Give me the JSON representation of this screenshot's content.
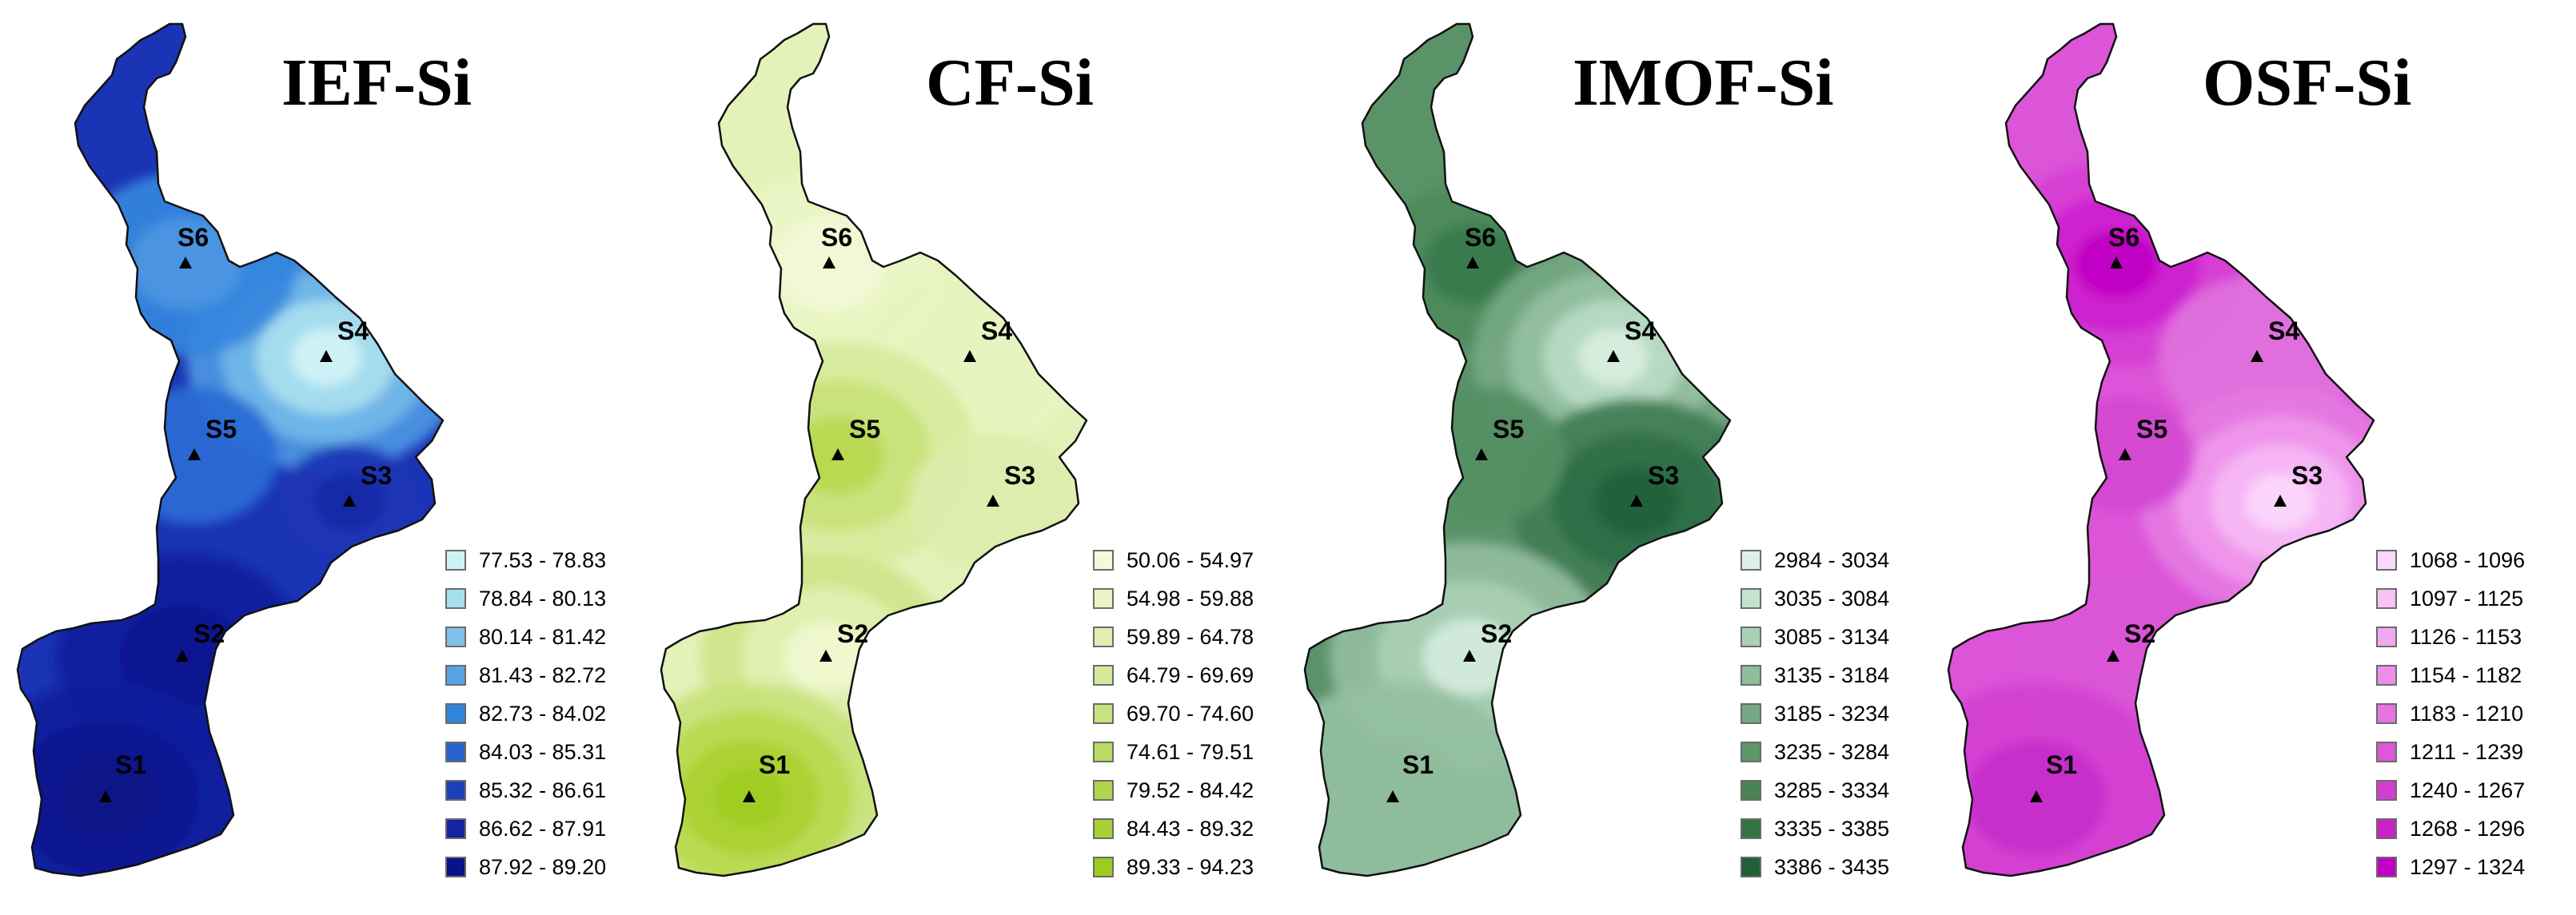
{
  "panels": [
    {
      "id": "ief",
      "title": "IEF-Si",
      "scheme": {
        "base": "#1b34b5",
        "border": "#111111",
        "blobs": [
          {
            "s": "S4",
            "c": [
              "#d0f3f6",
              "#a8e0ef",
              "#72b8e8",
              "#4d96e2"
            ],
            "r": 1.0
          },
          {
            "s": "S6",
            "c": [
              "#4d96e2",
              "#3585de"
            ],
            "r": 0.8
          },
          {
            "s": "S5",
            "c": [
              "#2a6bd5"
            ],
            "r": 0.6
          },
          {
            "s": "S3",
            "c": [
              "#142aa6",
              "#1b34b5"
            ],
            "r": 0.5
          },
          {
            "s": "S2",
            "c": [
              "#0c1690",
              "#101d9c"
            ],
            "r": 0.9
          },
          {
            "s": "S1",
            "c": [
              "#0a1287",
              "#0c1690",
              "#101d9c"
            ],
            "r": 1.0
          }
        ]
      },
      "legend": [
        {
          "label": "77.53 - 78.83",
          "color": "#cdf2f4"
        },
        {
          "label": "78.84 - 80.13",
          "color": "#a6dfee"
        },
        {
          "label": "80.14 - 81.42",
          "color": "#80c0e9"
        },
        {
          "label": "81.43 - 82.72",
          "color": "#5aa3e3"
        },
        {
          "label": "82.73 - 84.02",
          "color": "#2f86de"
        },
        {
          "label": "84.03 - 85.31",
          "color": "#2763cf"
        },
        {
          "label": "85.32 - 86.61",
          "color": "#1c40b7"
        },
        {
          "label": "86.62 - 87.91",
          "color": "#13249f"
        },
        {
          "label": "87.92 - 89.20",
          "color": "#0a1287"
        }
      ]
    },
    {
      "id": "cf",
      "title": "CF-Si",
      "scheme": {
        "base": "#e3f2b8",
        "border": "#111111",
        "blobs": [
          {
            "s": "S6",
            "c": [
              "#f3f9d8",
              "#eaf5c6"
            ],
            "r": 0.8
          },
          {
            "s": "S4",
            "c": [
              "#e8f4c0"
            ],
            "r": 0.8
          },
          {
            "s": "S5",
            "c": [
              "#b9d84f",
              "#c9e27a",
              "#d7ea9c"
            ],
            "r": 1.0
          },
          {
            "s": "S3",
            "c": [
              "#dcedab"
            ],
            "r": 0.6
          },
          {
            "s": "S2",
            "c": [
              "#f0f8d0",
              "#e2f1b4",
              "#cfe48a"
            ],
            "r": 0.9
          },
          {
            "s": "S1",
            "c": [
              "#9fcb1f",
              "#a9d02f",
              "#b8d94e",
              "#c8e27a"
            ],
            "r": 1.0
          }
        ]
      },
      "legend": [
        {
          "label": "50.06 - 54.97",
          "color": "#f4fad9"
        },
        {
          "label": "54.98 - 59.88",
          "color": "#eaf5c6"
        },
        {
          "label": "59.89 - 64.78",
          "color": "#dfefb1"
        },
        {
          "label": "64.79 - 69.69",
          "color": "#d4ea9a"
        },
        {
          "label": "69.70 - 74.60",
          "color": "#c8e27f"
        },
        {
          "label": "74.61 - 79.51",
          "color": "#bcdb66"
        },
        {
          "label": "79.52 - 84.42",
          "color": "#b0d54d"
        },
        {
          "label": "84.43 - 89.32",
          "color": "#a6d036"
        },
        {
          "label": "89.33 - 94.23",
          "color": "#9dcb1f"
        }
      ]
    },
    {
      "id": "imof",
      "title": "IMOF-Si",
      "scheme": {
        "base": "#5b9369",
        "border": "#111111",
        "blobs": [
          {
            "s": "S6",
            "c": [
              "#3b7a4c",
              "#4d8a5c"
            ],
            "r": 0.7
          },
          {
            "s": "S4",
            "c": [
              "#d9eee0",
              "#b9dbc4",
              "#95c0a2",
              "#76a884"
            ],
            "r": 1.0
          },
          {
            "s": "S3",
            "c": [
              "#22613a",
              "#2f6e45",
              "#3f7d52"
            ],
            "r": 0.9
          },
          {
            "s": "S5",
            "c": [
              "#558f64"
            ],
            "r": 0.6
          },
          {
            "s": "S2",
            "c": [
              "#d4ecdd",
              "#a9ceb4",
              "#92bd9f"
            ],
            "r": 1.0
          },
          {
            "s": "S1",
            "c": [
              "#8fbc9c",
              "#94c0a1"
            ],
            "r": 1.0
          }
        ]
      },
      "legend": [
        {
          "label": "2984 - 3034",
          "color": "#dff1e6"
        },
        {
          "label": "3035 - 3084",
          "color": "#c5e2cf"
        },
        {
          "label": "3085 - 3134",
          "color": "#aad1b6"
        },
        {
          "label": "3135 - 3184",
          "color": "#8fbd9c"
        },
        {
          "label": "3185 - 3234",
          "color": "#75a884"
        },
        {
          "label": "3235 - 3284",
          "color": "#5e9569"
        },
        {
          "label": "3285 - 3334",
          "color": "#488355"
        },
        {
          "label": "3335 - 3385",
          "color": "#337243"
        },
        {
          "label": "3386 - 3435",
          "color": "#1f6036"
        }
      ]
    },
    {
      "id": "osf",
      "title": "OSF-Si",
      "scheme": {
        "base": "#dc55d8",
        "border": "#111111",
        "blobs": [
          {
            "s": "S6",
            "c": [
              "#c000c4",
              "#cc1ecf",
              "#d63cd4"
            ],
            "r": 0.9
          },
          {
            "s": "S4",
            "c": [
              "#e072dd"
            ],
            "r": 0.7
          },
          {
            "s": "S3",
            "c": [
              "#fbd7fb",
              "#f6b8f4",
              "#ef97eb",
              "#e57ae2"
            ],
            "r": 1.0
          },
          {
            "s": "S5",
            "c": [
              "#d348d1"
            ],
            "r": 0.5
          },
          {
            "s": "S2",
            "c": [
              "#da56d7"
            ],
            "r": 0.7
          },
          {
            "s": "S1",
            "c": [
              "#c82ccb",
              "#d240d1"
            ],
            "r": 1.0
          }
        ]
      },
      "legend": [
        {
          "label": "1068 - 1096",
          "color": "#fbd9fb"
        },
        {
          "label": "1097 - 1125",
          "color": "#f7c2f6"
        },
        {
          "label": "1126 - 1153",
          "color": "#f2a8f0"
        },
        {
          "label": "1154 - 1182",
          "color": "#ec8ee9"
        },
        {
          "label": "1183 - 1210",
          "color": "#e574e2"
        },
        {
          "label": "1211 - 1239",
          "color": "#dc58d9"
        },
        {
          "label": "1240 - 1267",
          "color": "#d33ed1"
        },
        {
          "label": "1268 - 1296",
          "color": "#c922cb"
        },
        {
          "label": "1297 - 1324",
          "color": "#c000c4"
        }
      ]
    }
  ],
  "stations": [
    "S1",
    "S2",
    "S3",
    "S4",
    "S5",
    "S6"
  ]
}
